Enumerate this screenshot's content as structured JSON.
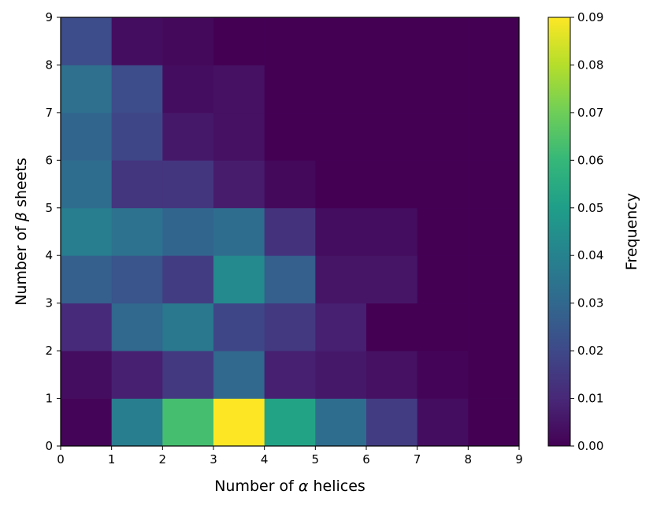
{
  "chart_data": {
    "type": "heatmap",
    "title": "",
    "xlabel_prefix": "Number of ",
    "xlabel_symbol": "α",
    "xlabel_suffix": " helices",
    "ylabel_prefix": "Number of ",
    "ylabel_symbol": "β",
    "ylabel_suffix": " sheets",
    "xlim": [
      0,
      9
    ],
    "ylim": [
      0,
      9
    ],
    "x_ticks": [
      "0",
      "1",
      "2",
      "3",
      "4",
      "5",
      "6",
      "7",
      "8",
      "9"
    ],
    "y_ticks": [
      "0",
      "1",
      "2",
      "3",
      "4",
      "5",
      "6",
      "7",
      "8",
      "9"
    ],
    "colormap": "viridis",
    "colorbar": {
      "label": "Frequency",
      "range": [
        0,
        0.09
      ],
      "ticks": [
        "0.00",
        "0.01",
        "0.02",
        "0.03",
        "0.04",
        "0.05",
        "0.06",
        "0.07",
        "0.08",
        "0.09"
      ]
    },
    "values_by_row_from_y0": [
      [
        0.001,
        0.038,
        0.063,
        0.09,
        0.052,
        0.032,
        0.016,
        0.003,
        0.0
      ],
      [
        0.003,
        0.008,
        0.015,
        0.03,
        0.008,
        0.006,
        0.004,
        0.001,
        0.0
      ],
      [
        0.011,
        0.03,
        0.036,
        0.019,
        0.015,
        0.008,
        0.0,
        0.0,
        0.0
      ],
      [
        0.027,
        0.024,
        0.016,
        0.043,
        0.027,
        0.005,
        0.005,
        0.0,
        0.0
      ],
      [
        0.038,
        0.034,
        0.029,
        0.032,
        0.013,
        0.003,
        0.003,
        0.0,
        0.0
      ],
      [
        0.032,
        0.014,
        0.014,
        0.007,
        0.002,
        0.0,
        0.0,
        0.0,
        0.0
      ],
      [
        0.029,
        0.019,
        0.006,
        0.004,
        0.0,
        0.0,
        0.0,
        0.0,
        0.0
      ],
      [
        0.033,
        0.021,
        0.003,
        0.004,
        0.0,
        0.0,
        0.0,
        0.0,
        0.0
      ],
      [
        0.021,
        0.003,
        0.002,
        0.0,
        0.0,
        0.0,
        0.0,
        0.0,
        0.0
      ]
    ]
  }
}
